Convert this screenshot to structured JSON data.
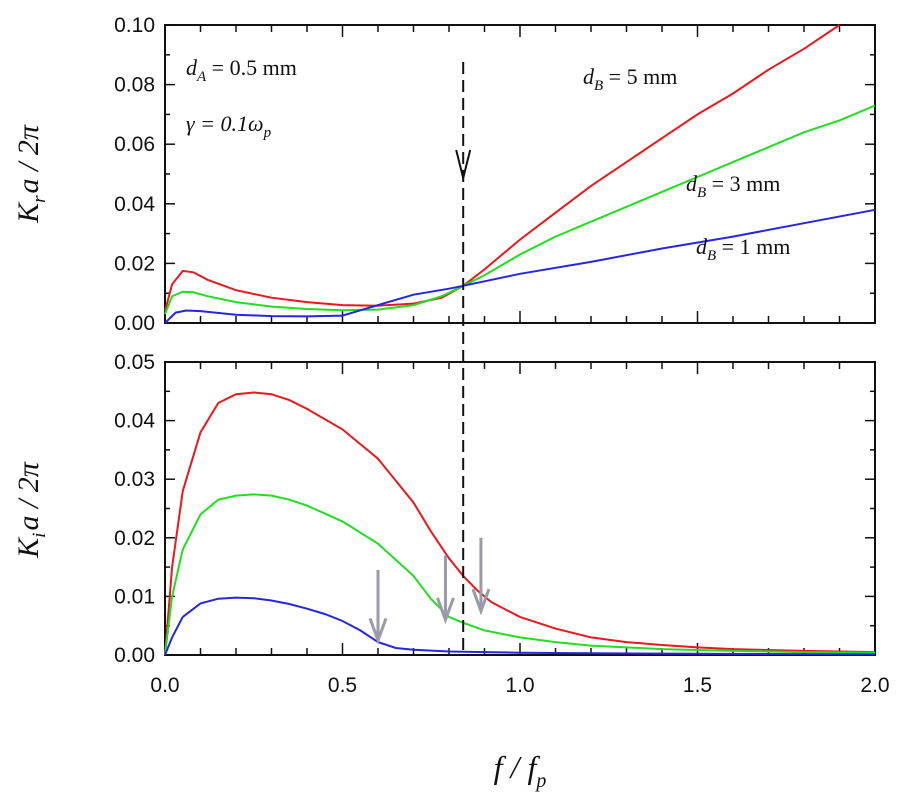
{
  "chart_data": [
    {
      "type": "line",
      "panel": "top",
      "ylabel": {
        "main": "K",
        "sub": "r",
        "tail": "a / 2π"
      },
      "xlim": [
        0,
        2.0
      ],
      "ylim": [
        0,
        0.1
      ],
      "yticks": [
        "0.00",
        "0.02",
        "0.04",
        "0.06",
        "0.08",
        "0.10"
      ],
      "ytick_values": [
        0,
        0.02,
        0.04,
        0.06,
        0.08,
        0.1
      ],
      "annotations": [
        {
          "pre": "d",
          "sub": "A",
          "post": " = 0.5 mm"
        },
        {
          "pre": "γ = 0.1ω",
          "sub": "p",
          "post": ""
        },
        {
          "pre": "d",
          "sub": "B",
          "post": " = 5 mm"
        },
        {
          "pre": "d",
          "sub": "B",
          "post": " = 3 mm"
        },
        {
          "pre": "d",
          "sub": "B",
          "post": " = 1 mm"
        }
      ],
      "series": [
        {
          "name": "d_B = 5 mm",
          "color": "#e8181c",
          "x": [
            0,
            0.02,
            0.05,
            0.08,
            0.12,
            0.2,
            0.3,
            0.4,
            0.5,
            0.6,
            0.7,
            0.78,
            0.84,
            0.9,
            1.0,
            1.1,
            1.2,
            1.3,
            1.4,
            1.5,
            1.6,
            1.7,
            1.8,
            1.9
          ],
          "y": [
            0.004,
            0.013,
            0.0175,
            0.017,
            0.0145,
            0.011,
            0.0085,
            0.007,
            0.006,
            0.0058,
            0.0065,
            0.0085,
            0.0125,
            0.018,
            0.028,
            0.037,
            0.046,
            0.054,
            0.062,
            0.07,
            0.077,
            0.085,
            0.092,
            0.1
          ]
        },
        {
          "name": "d_B = 3 mm",
          "color": "#22dd22",
          "x": [
            0,
            0.02,
            0.05,
            0.08,
            0.12,
            0.2,
            0.3,
            0.4,
            0.5,
            0.6,
            0.7,
            0.78,
            0.84,
            0.9,
            1.0,
            1.1,
            1.2,
            1.3,
            1.4,
            1.5,
            1.6,
            1.7,
            1.8,
            1.9,
            2.0
          ],
          "y": [
            0.003,
            0.009,
            0.0105,
            0.0103,
            0.009,
            0.007,
            0.0055,
            0.0047,
            0.0043,
            0.0045,
            0.006,
            0.009,
            0.0125,
            0.016,
            0.023,
            0.029,
            0.034,
            0.039,
            0.044,
            0.049,
            0.054,
            0.059,
            0.064,
            0.068,
            0.073
          ]
        },
        {
          "name": "d_B = 1 mm",
          "color": "#2626e0",
          "x": [
            0,
            0.03,
            0.06,
            0.1,
            0.2,
            0.3,
            0.4,
            0.5,
            0.6,
            0.7,
            0.8,
            0.84,
            0.9,
            1.0,
            1.2,
            1.4,
            1.6,
            1.8,
            2.0
          ],
          "y": [
            0.0,
            0.0035,
            0.0042,
            0.004,
            0.0028,
            0.0023,
            0.0022,
            0.0025,
            0.006,
            0.0095,
            0.0115,
            0.0125,
            0.014,
            0.0165,
            0.0205,
            0.025,
            0.029,
            0.0335,
            0.038
          ]
        }
      ]
    },
    {
      "type": "line",
      "panel": "bottom",
      "ylabel": {
        "main": "K",
        "sub": "i",
        "tail": "a / 2π"
      },
      "xlabel": {
        "pre": "f / f",
        "sub": "p"
      },
      "xlim": [
        0,
        2.0
      ],
      "ylim": [
        0,
        0.05
      ],
      "xticks": [
        "0.0",
        "0.5",
        "1.0",
        "1.5",
        "2.0"
      ],
      "xtick_values": [
        0,
        0.5,
        1.0,
        1.5,
        2.0
      ],
      "yticks": [
        "0.00",
        "0.01",
        "0.02",
        "0.03",
        "0.04",
        "0.05"
      ],
      "ytick_values": [
        0,
        0.01,
        0.02,
        0.03,
        0.04,
        0.05
      ],
      "series": [
        {
          "name": "d_B = 5 mm",
          "color": "#e8181c",
          "x": [
            0,
            0.02,
            0.05,
            0.1,
            0.15,
            0.2,
            0.25,
            0.3,
            0.35,
            0.4,
            0.5,
            0.6,
            0.7,
            0.75,
            0.8,
            0.84,
            0.88,
            0.92,
            1.0,
            1.1,
            1.2,
            1.3,
            1.4,
            1.5,
            1.6,
            1.8,
            2.0
          ],
          "y": [
            0.0,
            0.015,
            0.028,
            0.038,
            0.043,
            0.0445,
            0.0448,
            0.0445,
            0.0435,
            0.042,
            0.0385,
            0.0335,
            0.026,
            0.021,
            0.0165,
            0.0135,
            0.011,
            0.009,
            0.0065,
            0.0045,
            0.003,
            0.0022,
            0.0017,
            0.0013,
            0.001,
            0.0007,
            0.0005
          ]
        },
        {
          "name": "d_B = 3 mm",
          "color": "#22dd22",
          "x": [
            0,
            0.02,
            0.05,
            0.1,
            0.15,
            0.2,
            0.25,
            0.3,
            0.35,
            0.4,
            0.5,
            0.6,
            0.7,
            0.75,
            0.8,
            0.84,
            0.9,
            1.0,
            1.1,
            1.2,
            1.4,
            1.6,
            1.8,
            2.0
          ],
          "y": [
            0.0,
            0.01,
            0.018,
            0.024,
            0.0265,
            0.0272,
            0.0274,
            0.0272,
            0.0265,
            0.0255,
            0.0228,
            0.019,
            0.0135,
            0.0095,
            0.0065,
            0.0055,
            0.0042,
            0.003,
            0.0022,
            0.0016,
            0.001,
            0.0007,
            0.0005,
            0.0004
          ]
        },
        {
          "name": "d_B = 1 mm",
          "color": "#2626e0",
          "x": [
            0,
            0.02,
            0.05,
            0.1,
            0.15,
            0.2,
            0.25,
            0.3,
            0.35,
            0.4,
            0.45,
            0.5,
            0.55,
            0.6,
            0.65,
            0.7,
            0.8,
            0.9,
            1.0,
            1.2,
            1.5,
            2.0
          ],
          "y": [
            0.0,
            0.003,
            0.0065,
            0.0088,
            0.0096,
            0.0098,
            0.0097,
            0.0093,
            0.0087,
            0.0079,
            0.007,
            0.0058,
            0.0042,
            0.0022,
            0.0012,
            0.0009,
            0.0006,
            0.0005,
            0.0004,
            0.0003,
            0.0002,
            0.0001
          ]
        }
      ],
      "arrows": [
        {
          "x": 0.6,
          "y_top": 0.0145,
          "y_tip": 0.0025
        },
        {
          "x": 0.79,
          "y_top": 0.017,
          "y_tip": 0.006
        },
        {
          "x": 0.89,
          "y_top": 0.02,
          "y_tip": 0.0075
        }
      ]
    }
  ],
  "dashed_marker_x": 0.84
}
